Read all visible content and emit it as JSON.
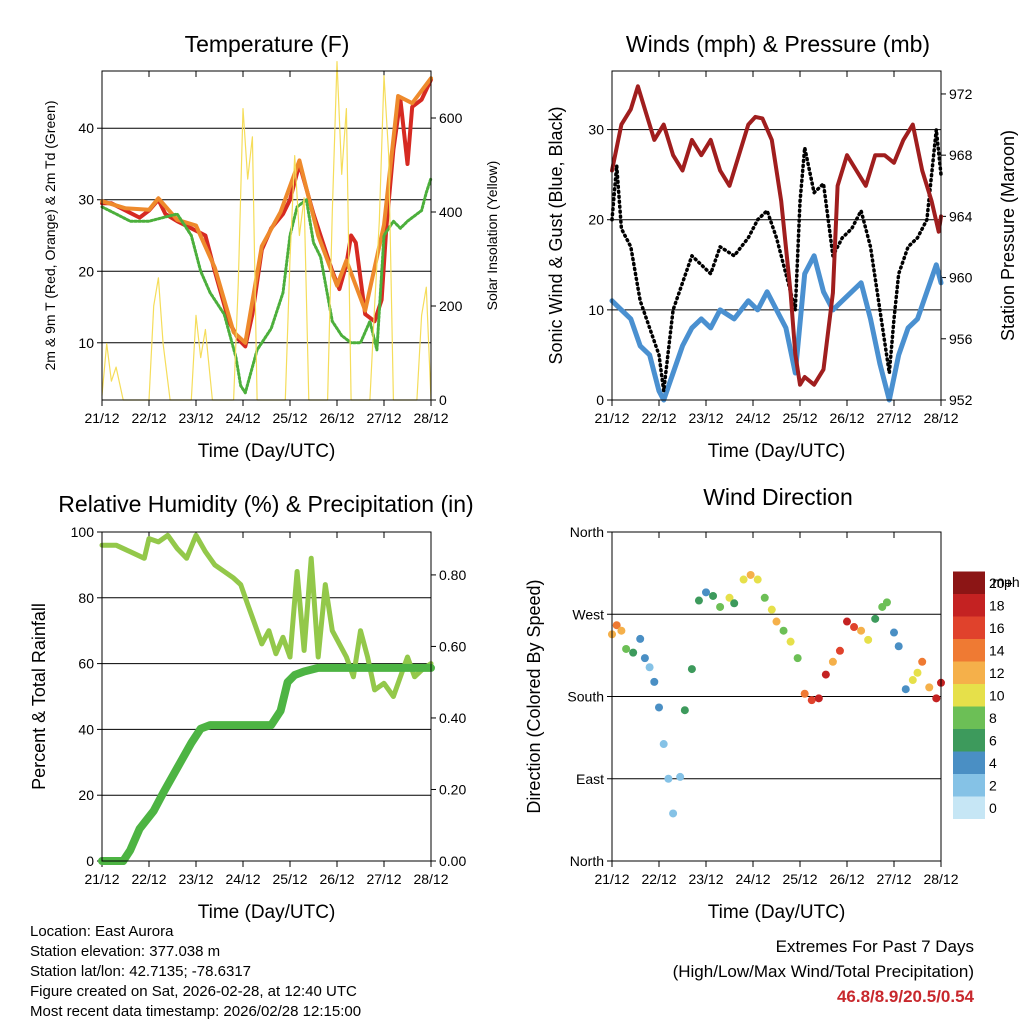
{
  "colors": {
    "temp_red": "#d62a22",
    "temp_orange": "#ee8a2c",
    "dewpoint_green": "#4caf3c",
    "solar_yellow": "#f5dd5a",
    "gust_black": "#000000",
    "wind_blue": "#4a90d0",
    "pressure_maroon": "#a01e1e",
    "rh_lightgreen": "#93c84a",
    "precip_green": "#4db443"
  },
  "chart_data": [
    {
      "id": "temperature",
      "type": "line",
      "title": "Temperature (F)",
      "xlabel": "Time (Day/UTC)",
      "ylabel": "2m & 9m T (Red, Orange) & 2m Td (Green)",
      "y2label": "Solar Insolation (Yellow)",
      "xlim": [
        0,
        7
      ],
      "ylim": [
        2,
        48
      ],
      "y2lim": [
        0,
        700
      ],
      "xticks": [
        "21/12",
        "22/12",
        "23/12",
        "24/12",
        "25/12",
        "26/12",
        "27/12",
        "28/12"
      ],
      "yticks": [
        10,
        20,
        30,
        40
      ],
      "y2ticks": [
        0,
        200,
        400,
        600
      ],
      "series": [
        {
          "name": "2m T",
          "color": "#d62a22",
          "x": [
            0,
            0.2,
            0.5,
            0.8,
            1.0,
            1.2,
            1.35,
            1.6,
            1.9,
            2.2,
            2.4,
            2.7,
            2.9,
            3.05,
            3.2,
            3.4,
            3.6,
            3.85,
            4.0,
            4.2,
            4.5,
            4.7,
            4.9,
            5.05,
            5.2,
            5.3,
            5.4,
            5.6,
            5.8,
            5.95,
            6.05,
            6.2,
            6.35,
            6.5,
            6.6,
            6.8,
            7.0
          ],
          "y": [
            29.5,
            29.5,
            28.5,
            27.5,
            28.5,
            30,
            28,
            27,
            26,
            25,
            20,
            13,
            10.5,
            9.5,
            14,
            23,
            26,
            28,
            30,
            35,
            28,
            24,
            20,
            17.5,
            21,
            25,
            24,
            14,
            13,
            16,
            26,
            37,
            44,
            35,
            43,
            44,
            46.8
          ]
        },
        {
          "name": "9m T",
          "color": "#ee8a2c",
          "x": [
            0,
            0.5,
            1.0,
            1.2,
            1.6,
            2.0,
            2.4,
            2.8,
            3.05,
            3.4,
            3.8,
            4.2,
            4.6,
            5.0,
            5.2,
            5.6,
            6.0,
            6.3,
            6.6,
            7.0
          ],
          "y": [
            29.8,
            28.8,
            28.6,
            30.2,
            27.2,
            26.4,
            20.5,
            11.5,
            10,
            23.5,
            28.3,
            35.5,
            25,
            18,
            21.5,
            14.5,
            26.5,
            44.5,
            43.5,
            47
          ]
        },
        {
          "name": "2m Td",
          "color": "#4caf3c",
          "x": [
            0,
            0.3,
            0.6,
            1.0,
            1.3,
            1.6,
            1.9,
            2.1,
            2.3,
            2.6,
            2.85,
            2.95,
            3.05,
            3.3,
            3.6,
            3.85,
            4.0,
            4.15,
            4.35,
            4.5,
            4.65,
            4.9,
            5.1,
            5.3,
            5.5,
            5.7,
            5.85,
            6.0,
            6.2,
            6.35,
            6.5,
            6.8,
            6.9,
            7.0
          ],
          "y": [
            29,
            28,
            27,
            27,
            27.5,
            28,
            25,
            20,
            17,
            14,
            8,
            4,
            3,
            9,
            12,
            17,
            25,
            29,
            30,
            24,
            22,
            13,
            11,
            10,
            10,
            13,
            9,
            25,
            27,
            26,
            27,
            28.5,
            31,
            33
          ]
        },
        {
          "name": "Solar",
          "color": "#f5dd5a",
          "axis": "y2",
          "x": [
            0,
            0.1,
            0.2,
            0.3,
            0.45,
            1.0,
            1.1,
            1.2,
            1.3,
            1.45,
            1.9,
            2.0,
            2.1,
            2.2,
            2.35,
            2.8,
            2.9,
            3.0,
            3.1,
            3.2,
            3.3,
            3.9,
            4.0,
            4.1,
            4.2,
            4.3,
            4.4,
            4.8,
            4.9,
            5.0,
            5.1,
            5.2,
            5.3,
            5.7,
            5.8,
            5.9,
            6.0,
            6.1,
            6.2,
            6.7,
            6.8,
            6.9,
            7.0
          ],
          "y": [
            10,
            120,
            40,
            70,
            0,
            0,
            200,
            260,
            120,
            0,
            0,
            180,
            90,
            150,
            0,
            0,
            250,
            620,
            470,
            560,
            0,
            0,
            300,
            520,
            350,
            430,
            0,
            0,
            400,
            720,
            480,
            620,
            0,
            0,
            200,
            380,
            690,
            520,
            0,
            0,
            180,
            240,
            0
          ]
        }
      ]
    },
    {
      "id": "winds",
      "type": "line",
      "title": "Winds (mph) & Pressure (mb)",
      "xlabel": "Time (Day/UTC)",
      "ylabel": "Sonic Wind & Gust (Blue, Black)",
      "y2label": "Station Pressure (Maroon)",
      "xlim": [
        0,
        7
      ],
      "ylim": [
        0,
        36.5
      ],
      "y2lim": [
        952,
        973.5
      ],
      "xticks": [
        "21/12",
        "22/12",
        "23/12",
        "24/12",
        "25/12",
        "26/12",
        "27/12",
        "28/12"
      ],
      "yticks": [
        0,
        10,
        20,
        30
      ],
      "y2ticks": [
        952,
        956,
        960,
        964,
        968,
        972
      ],
      "series": [
        {
          "name": "Wind",
          "color": "#4a90d0",
          "x": [
            0,
            0.2,
            0.4,
            0.6,
            0.8,
            1.0,
            1.1,
            1.3,
            1.5,
            1.7,
            1.9,
            2.1,
            2.3,
            2.6,
            2.9,
            3.1,
            3.3,
            3.5,
            3.7,
            3.9,
            4.1,
            4.3,
            4.5,
            4.7,
            4.9,
            5.1,
            5.3,
            5.5,
            5.7,
            5.9,
            6.1,
            6.3,
            6.5,
            6.7,
            6.9,
            7.0
          ],
          "y": [
            11,
            10,
            9,
            6,
            5,
            1,
            0,
            3,
            6,
            8,
            9,
            8,
            10,
            9,
            11,
            10,
            12,
            10,
            8,
            3,
            14,
            16,
            12,
            10,
            11,
            12,
            13,
            9,
            4,
            0,
            5,
            8,
            9,
            12,
            15,
            13
          ]
        },
        {
          "name": "Gust",
          "color": "#000000",
          "x": [
            0,
            0.1,
            0.2,
            0.4,
            0.6,
            0.8,
            1.0,
            1.1,
            1.3,
            1.5,
            1.7,
            1.9,
            2.1,
            2.3,
            2.6,
            2.9,
            3.1,
            3.3,
            3.5,
            3.7,
            3.9,
            4.0,
            4.1,
            4.3,
            4.5,
            4.7,
            4.9,
            5.1,
            5.3,
            5.5,
            5.7,
            5.9,
            6.0,
            6.1,
            6.3,
            6.5,
            6.7,
            6.9,
            7.0
          ],
          "y": [
            20,
            26,
            19,
            17,
            11,
            8,
            5,
            1,
            10,
            13,
            16,
            15,
            14,
            17,
            16,
            18,
            20,
            21,
            18,
            14,
            10,
            22,
            28,
            23,
            24,
            16,
            18,
            19,
            21,
            17,
            10,
            3,
            9,
            14,
            17,
            18,
            20,
            30,
            25
          ]
        },
        {
          "name": "Pressure",
          "color": "#a01e1e",
          "axis": "y2",
          "x": [
            0,
            0.2,
            0.4,
            0.55,
            0.7,
            0.9,
            1.1,
            1.3,
            1.5,
            1.7,
            1.9,
            2.1,
            2.3,
            2.5,
            2.7,
            2.9,
            3.05,
            3.2,
            3.4,
            3.6,
            3.8,
            3.9,
            4.0,
            4.1,
            4.3,
            4.5,
            4.7,
            4.8,
            5.0,
            5.2,
            5.4,
            5.6,
            5.8,
            6.0,
            6.2,
            6.4,
            6.6,
            6.8,
            6.95,
            7.0
          ],
          "y": [
            967,
            970,
            971,
            972.5,
            971,
            969,
            970,
            968,
            967,
            969,
            968,
            969,
            967,
            966,
            968,
            970,
            970.5,
            970.4,
            969,
            965,
            959,
            955,
            953,
            953.5,
            953,
            954,
            959,
            966,
            968,
            967,
            966,
            968,
            968,
            967.5,
            969,
            970,
            967,
            965,
            963,
            964
          ]
        }
      ]
    },
    {
      "id": "humidity",
      "type": "line",
      "title": "Relative Humidity (%) & Precipitation (in)",
      "xlabel": "Time (Day/UTC)",
      "ylabel": "Percent & Total Rainfall",
      "xlim": [
        0,
        7
      ],
      "ylim": [
        0,
        100
      ],
      "y2lim": [
        0,
        0.92
      ],
      "xticks": [
        "21/12",
        "22/12",
        "23/12",
        "24/12",
        "25/12",
        "26/12",
        "27/12",
        "28/12"
      ],
      "yticks": [
        0,
        20,
        40,
        60,
        80,
        100
      ],
      "y2ticks": [
        "0.00",
        "0.20",
        "0.40",
        "0.60",
        "0.80"
      ],
      "series": [
        {
          "name": "RH",
          "color": "#93c84a",
          "x": [
            0,
            0.3,
            0.6,
            0.9,
            1.0,
            1.2,
            1.4,
            1.6,
            1.8,
            2.0,
            2.2,
            2.4,
            2.6,
            2.8,
            2.95,
            3.1,
            3.25,
            3.4,
            3.55,
            3.7,
            3.85,
            4.0,
            4.15,
            4.3,
            4.45,
            4.6,
            4.75,
            4.9,
            5.05,
            5.2,
            5.35,
            5.5,
            5.65,
            5.8,
            6.0,
            6.2,
            6.35,
            6.5,
            6.65,
            6.8,
            7.0
          ],
          "y": [
            96,
            96,
            94,
            92,
            98,
            97,
            99,
            95,
            92,
            99,
            94,
            90,
            88,
            86,
            84,
            78,
            72,
            66,
            70,
            63,
            68,
            62,
            88,
            64,
            92,
            62,
            84,
            70,
            66,
            62,
            56,
            70,
            62,
            52,
            54,
            50,
            56,
            62,
            56,
            58,
            60
          ]
        },
        {
          "name": "Precip",
          "color": "#4db443",
          "axis": "y2",
          "x": [
            0,
            0.45,
            0.6,
            0.8,
            1.1,
            1.3,
            1.6,
            1.9,
            2.1,
            2.3,
            2.5,
            2.8,
            3.0,
            3.3,
            3.6,
            3.8,
            3.95,
            4.1,
            4.3,
            4.6,
            4.9,
            5.3,
            5.8,
            6.3,
            6.8,
            7.0
          ],
          "y": [
            0,
            0,
            0.03,
            0.09,
            0.14,
            0.19,
            0.26,
            0.33,
            0.37,
            0.38,
            0.38,
            0.38,
            0.38,
            0.38,
            0.38,
            0.42,
            0.5,
            0.52,
            0.53,
            0.54,
            0.54,
            0.54,
            0.54,
            0.54,
            0.54,
            0.54
          ]
        }
      ]
    },
    {
      "id": "wind_direction",
      "type": "scatter",
      "title": "Wind Direction",
      "xlabel": "Time (Day/UTC)",
      "ylabel": "Direction (Colored By Speed)",
      "xlim": [
        0,
        7
      ],
      "ylim": [
        0,
        360
      ],
      "xticks": [
        "21/12",
        "22/12",
        "23/12",
        "24/12",
        "25/12",
        "26/12",
        "27/12",
        "28/12"
      ],
      "yticks": [
        "North",
        "East",
        "South",
        "West",
        "North"
      ],
      "colorbar": {
        "title": "mph",
        "labels": [
          "0",
          "2",
          "4",
          "6",
          "8",
          "10",
          "12",
          "14",
          "16",
          "18",
          "20+"
        ],
        "colors": [
          "#c6e6f5",
          "#85c2e6",
          "#4a8fc4",
          "#3d9a5c",
          "#6cbf56",
          "#e6e04a",
          "#f5b04a",
          "#ef7a33",
          "#e0422c",
          "#c42222",
          "#8c1515"
        ]
      },
      "x": [
        0.0,
        0.1,
        0.2,
        0.3,
        0.45,
        0.6,
        0.7,
        0.8,
        0.9,
        1.0,
        1.1,
        1.2,
        1.3,
        1.45,
        1.55,
        1.7,
        1.85,
        2.0,
        2.15,
        2.3,
        2.5,
        2.6,
        2.8,
        2.95,
        3.1,
        3.25,
        3.4,
        3.5,
        3.65,
        3.8,
        3.95,
        4.1,
        4.25,
        4.4,
        4.55,
        4.7,
        4.85,
        5.0,
        5.15,
        5.3,
        5.45,
        5.6,
        5.75,
        5.85,
        6.0,
        6.1,
        6.25,
        6.4,
        6.5,
        6.6,
        6.75,
        6.9,
        7.0
      ],
      "y": [
        248,
        258,
        252,
        232,
        228,
        243,
        222,
        212,
        196,
        168,
        128,
        90,
        52,
        92,
        165,
        210,
        285,
        294,
        290,
        278,
        288,
        282,
        308,
        313,
        308,
        288,
        275,
        262,
        252,
        240,
        222,
        183,
        176,
        178,
        204,
        218,
        230,
        262,
        256,
        252,
        242,
        265,
        278,
        283,
        250,
        235,
        188,
        198,
        206,
        218,
        190,
        178,
        195
      ],
      "speed": [
        12,
        14,
        12,
        8,
        5,
        4,
        3,
        2,
        4,
        3,
        1,
        1,
        1,
        2,
        5,
        6,
        5,
        4,
        5,
        7,
        9,
        6,
        10,
        11,
        9,
        7,
        10,
        12,
        8,
        10,
        7,
        13,
        15,
        17,
        18,
        12,
        16,
        18,
        15,
        11,
        9,
        6,
        8,
        7,
        4,
        3,
        4,
        9,
        10,
        14,
        11,
        17,
        18
      ]
    }
  ],
  "footer": {
    "location": "Location: East Aurora",
    "elevation": "Station elevation: 377.038 m",
    "latlon": "Station lat/lon: 42.7135; -78.6317",
    "created": "Figure created on Sat, 2026-02-28, at 12:40 UTC",
    "timestamp": "Most recent data timestamp: 2026/02/28 12:15:00"
  },
  "extremes": {
    "heading": "Extremes For Past 7 Days",
    "subheading": "(High/Low/Max Wind/Total Precipitation)",
    "values": "46.8/8.9/20.5/0.54"
  }
}
